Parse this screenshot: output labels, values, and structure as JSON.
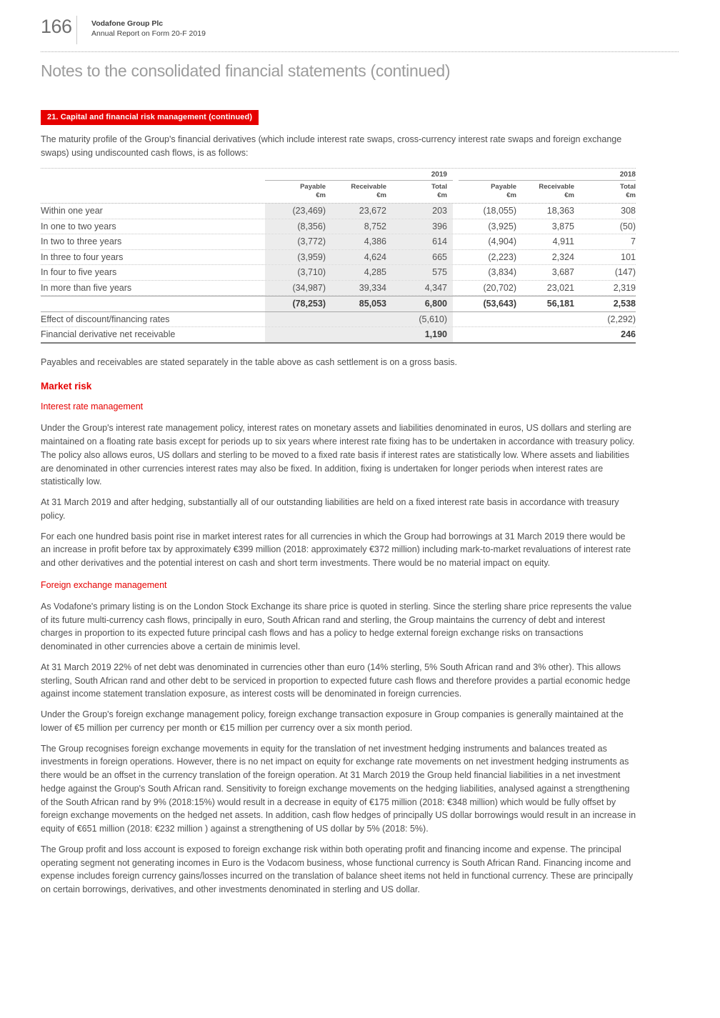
{
  "header": {
    "page_number": "166",
    "company": "Vodafone Group Plc",
    "report": "Annual Report on Form 20-F 2019",
    "title": "Notes to the consolidated financial statements (continued)"
  },
  "section": {
    "banner": "21. Capital and financial risk management (continued)",
    "intro": "The maturity profile of the Group's financial derivatives (which include interest rate swaps, cross-currency interest rate swaps and foreign exchange swaps) using undiscounted cash flows, is as follows:"
  },
  "table": {
    "year_groups": [
      "2019",
      "2018"
    ],
    "columns": [
      {
        "label": "Payable",
        "unit": "€m"
      },
      {
        "label": "Receivable",
        "unit": "€m"
      },
      {
        "label": "Total",
        "unit": "€m"
      },
      {
        "label": "Payable",
        "unit": "€m"
      },
      {
        "label": "Receivable",
        "unit": "€m"
      },
      {
        "label": "Total",
        "unit": "€m"
      }
    ],
    "rows": [
      {
        "label": "Within one year",
        "values": [
          "(23,469)",
          "23,672",
          "203",
          "(18,055)",
          "18,363",
          "308"
        ]
      },
      {
        "label": "In one to two years",
        "values": [
          "(8,356)",
          "8,752",
          "396",
          "(3,925)",
          "3,875",
          "(50)"
        ]
      },
      {
        "label": "In two to three years",
        "values": [
          "(3,772)",
          "4,386",
          "614",
          "(4,904)",
          "4,911",
          "7"
        ]
      },
      {
        "label": "In three to four years",
        "values": [
          "(3,959)",
          "4,624",
          "665",
          "(2,223)",
          "2,324",
          "101"
        ]
      },
      {
        "label": "In four to five years",
        "values": [
          "(3,710)",
          "4,285",
          "575",
          "(3,834)",
          "3,687",
          "(147)"
        ]
      },
      {
        "label": "In more than five years",
        "values": [
          "(34,987)",
          "39,334",
          "4,347",
          "(20,702)",
          "23,021",
          "2,319"
        ]
      }
    ],
    "total_row": {
      "label": "",
      "values": [
        "(78,253)",
        "85,053",
        "6,800",
        "(53,643)",
        "56,181",
        "2,538"
      ]
    },
    "effect_row": {
      "label": "Effect of discount/financing rates",
      "values": [
        "",
        "",
        "(5,610)",
        "",
        "",
        "(2,292)"
      ]
    },
    "net_row": {
      "label": "Financial derivative net receivable",
      "values": [
        "",
        "",
        "1,190",
        "",
        "",
        "246"
      ]
    }
  },
  "notes": {
    "after_table": "Payables and receivables are stated separately in the table above as cash settlement is on a gross basis.",
    "market_risk_heading": "Market risk",
    "interest_heading": "Interest rate management",
    "interest_p1": "Under the Group's interest rate management policy, interest rates on monetary assets and liabilities denominated in euros, US dollars and sterling are maintained on a floating rate basis except for periods up to six years where interest rate fixing has to be undertaken in accordance with treasury policy. The policy also allows euros, US dollars and sterling to be moved to a fixed rate basis if interest rates are statistically low. Where assets and liabilities are denominated in other currencies interest rates may also be fixed. In addition, fixing is undertaken for longer periods when interest rates are statistically low.",
    "interest_p2": "At 31 March 2019 and after hedging, substantially all of our outstanding liabilities are held on a fixed interest rate basis in accordance with treasury policy.",
    "interest_p3": "For each one hundred basis point rise in market interest rates for all currencies in which the Group had borrowings at 31 March 2019 there would be an increase in profit before tax by approximately €399 million (2018: approximately €372 million) including mark-to-market revaluations of interest rate and other derivatives and the potential interest on cash and short term investments. There would be no material impact on equity.",
    "fx_heading": "Foreign exchange management",
    "fx_p1": "As Vodafone's primary listing is on the London Stock Exchange its share price is quoted in sterling. Since the sterling share price represents the value of its future multi-currency cash flows, principally in euro, South African rand and sterling, the Group maintains the currency of debt and interest charges in proportion to its expected future principal cash flows and has a policy to hedge external foreign exchange risks on transactions denominated in other currencies above a certain de minimis level.",
    "fx_p2": "At 31 March 2019 22% of net debt was denominated in currencies other than euro (14% sterling, 5% South African rand and 3% other). This allows sterling, South African rand and other debt to be serviced in proportion to expected future cash flows and therefore provides a partial economic hedge against income statement translation exposure, as interest costs will be denominated in foreign currencies.",
    "fx_p3": "Under the Group's foreign exchange management policy, foreign exchange transaction exposure in Group companies is generally maintained at the lower of €5 million per currency per month or €15 million per currency over a six month period.",
    "fx_p4": "The Group recognises foreign exchange movements in equity for the translation of net investment hedging instruments and balances treated as investments in foreign operations. However, there is no net impact on equity for exchange rate movements on net investment hedging instruments as there would be an offset in the currency translation of the foreign operation. At 31 March 2019 the Group held financial liabilities in a net investment hedge against the Group's South African rand. Sensitivity to foreign exchange movements on the hedging liabilities, analysed against a strengthening of the South African rand by 9% (2018:15%) would result in a decrease in equity of €175 million (2018: €348 million) which would be fully offset by foreign exchange movements on the hedged net assets. In addition, cash flow hedges of principally US dollar borrowings would result in an increase in equity of €651 million (2018: €232 million ) against a strengthening of US dollar by 5% (2018: 5%).",
    "fx_p5": "The Group profit and loss account is exposed to foreign exchange risk within both operating profit and financing income and expense. The principal operating segment not generating incomes in Euro is the Vodacom business, whose functional currency is South African Rand. Financing income and expense includes foreign currency gains/losses incurred on the translation of balance sheet items not held in functional currency. These are principally on certain borrowings, derivatives, and other investments denominated in sterling and US dollar."
  },
  "colors": {
    "accent_red": "#e60000",
    "stripe_gray": "#ececec",
    "body_text": "#4e4e4e",
    "title_gray": "#9c9c9c"
  }
}
